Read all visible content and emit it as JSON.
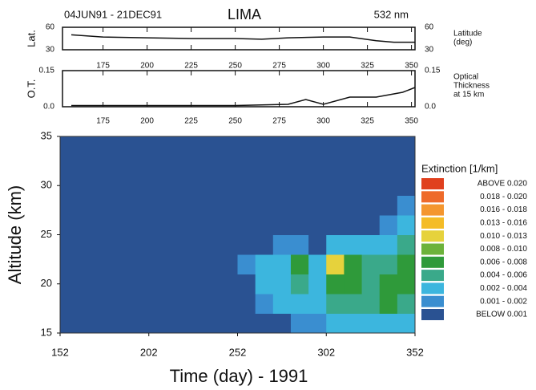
{
  "chart_data": [
    {
      "type": "line",
      "annotations": [
        "04JUN91 - 21DEC91",
        "LIMA",
        "532 nm"
      ],
      "ylabel": "Lat.",
      "ylabel_right": [
        "Latitude",
        "(deg)"
      ],
      "xlim": [
        152,
        352
      ],
      "xticks": [
        175,
        200,
        225,
        250,
        275,
        300,
        325,
        350
      ],
      "ylim": [
        30,
        60
      ],
      "yticks": [
        30,
        60
      ],
      "series": [
        {
          "color": "#111111",
          "x": [
            157,
            175,
            200,
            225,
            250,
            265,
            280,
            300,
            315,
            330,
            340,
            352
          ],
          "values": [
            50,
            47,
            46,
            45,
            45,
            44,
            46,
            47,
            47,
            42,
            40,
            40
          ]
        }
      ]
    },
    {
      "type": "line",
      "ylabel": "O.T.",
      "ylabel_right": [
        "Optical",
        "Thickness",
        "at 15 km"
      ],
      "xlim": [
        152,
        352
      ],
      "xticks": [
        175,
        200,
        225,
        250,
        275,
        300,
        325,
        350
      ],
      "ylim": [
        0,
        0.15
      ],
      "yticks": [
        {
          "value": 0,
          "label": "0.0"
        },
        0.15
      ],
      "series": [
        {
          "color": "#111111",
          "x": [
            157,
            200,
            250,
            280,
            290,
            300,
            315,
            330,
            345,
            352
          ],
          "values": [
            0.005,
            0.005,
            0.005,
            0.01,
            0.03,
            0.01,
            0.04,
            0.04,
            0.06,
            0.08
          ]
        }
      ]
    },
    {
      "type": "heatmap",
      "xlabel": "Time (day) -  1991",
      "ylabel": "Altitude (km)",
      "xlim": [
        152,
        352
      ],
      "xticks": [
        152,
        202,
        252,
        302,
        352
      ],
      "ylim": [
        15,
        35
      ],
      "yticks": [
        15,
        20,
        25,
        30,
        35
      ],
      "x": [
        157,
        167,
        177,
        187,
        197,
        207,
        217,
        227,
        237,
        247,
        257,
        267,
        277,
        287,
        297,
        307,
        317,
        327,
        337,
        347
      ],
      "y": [
        16,
        18,
        20,
        22,
        24,
        26,
        28,
        30,
        32,
        34
      ],
      "z": [
        [
          0.0005,
          0.0005,
          0.0005,
          0.0005,
          0.0005,
          0.0005,
          0.0005,
          0.0005,
          0.0005,
          0.0005,
          0.0005,
          0.0005,
          0.0005,
          0.0015,
          0.0015,
          0.003,
          0.003,
          0.003,
          0.003,
          0.003
        ],
        [
          0.0005,
          0.0005,
          0.0005,
          0.0005,
          0.0005,
          0.0005,
          0.0005,
          0.0005,
          0.0005,
          0.0005,
          0.0005,
          0.0015,
          0.003,
          0.003,
          0.003,
          0.005,
          0.005,
          0.005,
          0.007,
          0.005
        ],
        [
          0.0005,
          0.0005,
          0.0005,
          0.0005,
          0.0005,
          0.0005,
          0.0005,
          0.0005,
          0.0005,
          0.0005,
          0.0005,
          0.003,
          0.003,
          0.005,
          0.003,
          0.007,
          0.007,
          0.005,
          0.007,
          0.007
        ],
        [
          0.0005,
          0.0005,
          0.0005,
          0.0005,
          0.0005,
          0.0005,
          0.0005,
          0.0005,
          0.0005,
          0.0005,
          0.0015,
          0.003,
          0.003,
          0.007,
          0.003,
          0.011,
          0.007,
          0.005,
          0.005,
          0.007
        ],
        [
          0.0005,
          0.0005,
          0.0005,
          0.0005,
          0.0005,
          0.0005,
          0.0005,
          0.0005,
          0.0005,
          0.0005,
          0.0005,
          0.0005,
          0.0015,
          0.0015,
          0.0005,
          0.003,
          0.003,
          0.003,
          0.003,
          0.005
        ],
        [
          0.0005,
          0.0005,
          0.0005,
          0.0005,
          0.0005,
          0.0005,
          0.0005,
          0.0005,
          0.0005,
          0.0005,
          0.0005,
          0.0005,
          0.0005,
          0.0005,
          0.0005,
          0.0005,
          0.0005,
          0.0005,
          0.0015,
          0.003
        ],
        [
          0.0005,
          0.0005,
          0.0005,
          0.0005,
          0.0005,
          0.0005,
          0.0005,
          0.0005,
          0.0005,
          0.0005,
          0.0005,
          0.0005,
          0.0005,
          0.0005,
          0.0005,
          0.0005,
          0.0005,
          0.0005,
          0.0005,
          0.0015
        ],
        [
          0.0005,
          0.0005,
          0.0005,
          0.0005,
          0.0005,
          0.0005,
          0.0005,
          0.0005,
          0.0005,
          0.0005,
          0.0005,
          0.0005,
          0.0005,
          0.0005,
          0.0005,
          0.0005,
          0.0005,
          0.0005,
          0.0005,
          0.0005
        ],
        [
          0.0005,
          0.0005,
          0.0005,
          0.0005,
          0.0005,
          0.0005,
          0.0005,
          0.0005,
          0.0005,
          0.0005,
          0.0005,
          0.0005,
          0.0005,
          0.0005,
          0.0005,
          0.0005,
          0.0005,
          0.0005,
          0.0005,
          0.0005
        ],
        [
          0.0005,
          0.0005,
          0.0005,
          0.0005,
          0.0005,
          0.0005,
          0.0005,
          0.0005,
          0.0005,
          0.0005,
          0.0005,
          0.0005,
          0.0005,
          0.0005,
          0.0005,
          0.0005,
          0.0005,
          0.0005,
          0.0005,
          0.0005
        ]
      ],
      "levels": [
        0.001,
        0.002,
        0.004,
        0.006,
        0.008,
        0.01,
        0.013,
        0.016,
        0.018,
        0.02
      ],
      "legend": {
        "title": "Extinction [1/km]",
        "items": [
          {
            "label": "ABOVE  0.020",
            "color": "#e0401e"
          },
          {
            "label": "0.018 - 0.020",
            "color": "#ee6a2a"
          },
          {
            "label": "0.016 -  0.018",
            "color": "#f4962e"
          },
          {
            "label": "0.013 -  0.016",
            "color": "#f4bc26"
          },
          {
            "label": "0.010 -  0.013",
            "color": "#e6d23c"
          },
          {
            "label": "0.008 - 0.010",
            "color": "#6cb23a"
          },
          {
            "label": "0.006 - 0.008",
            "color": "#2f9a3a"
          },
          {
            "label": "0.004 - 0.006",
            "color": "#3aa98a"
          },
          {
            "label": "0.002 - 0.004",
            "color": "#3cb6de"
          },
          {
            "label": "0.001 - 0.002",
            "color": "#3a8ed0"
          },
          {
            "label": "BELOW  0.001",
            "color": "#2a5292"
          }
        ]
      }
    }
  ]
}
